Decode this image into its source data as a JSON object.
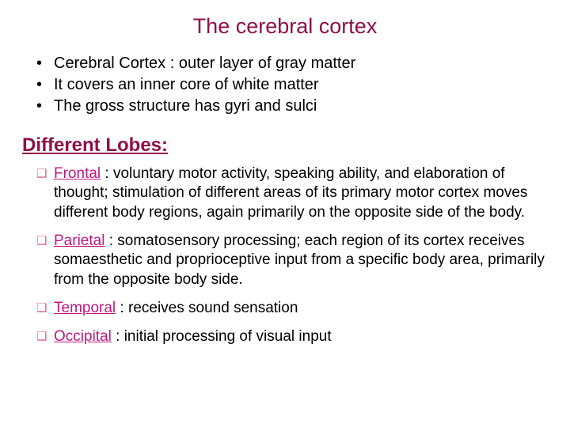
{
  "colors": {
    "title": "#8f0f4a",
    "body": "#000000",
    "subheading": "#8f0f4a",
    "lobeMarker": "#d95c9a",
    "lobeName": "#c01880"
  },
  "title": "The cerebral cortex",
  "bullets": [
    "Cerebral Cortex :  outer layer of gray matter",
    "It covers an inner core of white matter",
    "The gross structure has gyri and sulci"
  ],
  "subheading": "Different Lobes:",
  "lobes": [
    {
      "name": "Frontal",
      "desc": " : voluntary motor activity, speaking ability, and elaboration of thought; stimulation of different areas of its primary motor cortex moves different body regions, again primarily on the opposite side of the body."
    },
    {
      "name": "Parietal",
      "desc": " : somatosensory processing; each region of its cortex receives somaesthetic and proprioceptive input from a specific body area, primarily from the opposite body side."
    },
    {
      "name": "Temporal",
      "desc": " : receives sound sensation"
    },
    {
      "name": "Occipital",
      "desc": " : initial processing of visual input"
    }
  ]
}
